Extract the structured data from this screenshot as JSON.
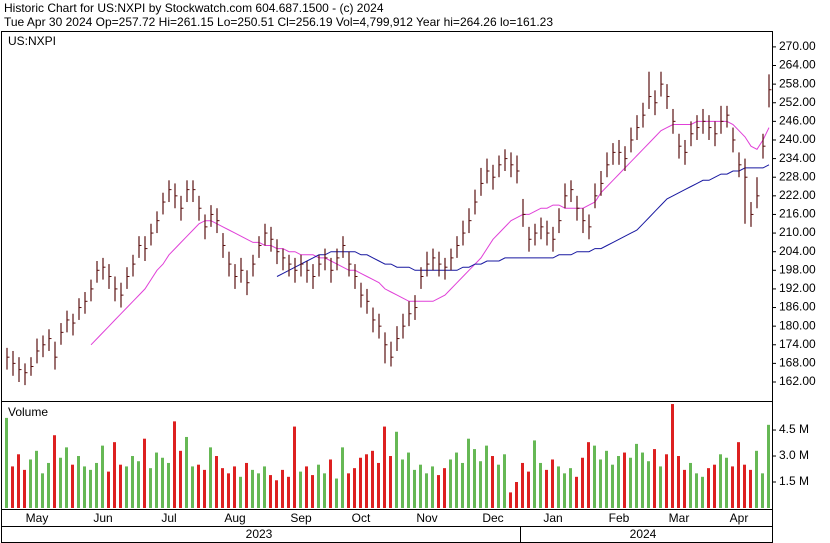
{
  "chart_data": {
    "type": "ohlc",
    "title": "Historic Chart for US:NXPI by Stockwatch.com 604.687.1500 - (c) 2024",
    "subtitle": "Tue Apr 30 2024  Op=257.72  Hi=261.15  Lo=250.51  Cl=256.19  Vol=4,799,912  Year hi=264.26  lo=161.23",
    "symbol": "US:NXPI",
    "bar_color": "#5a1010",
    "categories": [
      null,
      null,
      null,
      null,
      null,
      "May",
      null,
      null,
      null,
      null,
      null,
      null,
      null,
      null,
      null,
      null,
      "Jun",
      null,
      null,
      null,
      null,
      null,
      null,
      null,
      null,
      null,
      null,
      "Jul",
      null,
      null,
      null,
      null,
      null,
      null,
      null,
      null,
      null,
      null,
      "Aug",
      null,
      null,
      null,
      null,
      null,
      null,
      null,
      null,
      null,
      null,
      "Sep",
      null,
      null,
      null,
      null,
      null,
      null,
      null,
      null,
      null,
      "Oct",
      null,
      null,
      null,
      null,
      null,
      null,
      null,
      null,
      null,
      null,
      "Nov",
      null,
      null,
      null,
      null,
      null,
      null,
      null,
      null,
      null,
      null,
      "Dec",
      null,
      null,
      null,
      null,
      null,
      null,
      null,
      null,
      null,
      "Jan",
      null,
      null,
      null,
      null,
      null,
      null,
      null,
      null,
      null,
      null,
      "Feb",
      null,
      null,
      null,
      null,
      null,
      null,
      null,
      null,
      null,
      "Mar",
      null,
      null,
      null,
      null,
      null,
      null,
      null,
      null,
      null,
      "Apr",
      null,
      null,
      null,
      null,
      null
    ],
    "year_categories": [
      null,
      null,
      null,
      null,
      null,
      null,
      null,
      null,
      null,
      null,
      null,
      null,
      null,
      null,
      null,
      null,
      null,
      null,
      null,
      null,
      null,
      null,
      null,
      null,
      null,
      null,
      null,
      null,
      null,
      null,
      null,
      null,
      null,
      null,
      null,
      null,
      null,
      null,
      null,
      null,
      null,
      null,
      "2023",
      null,
      null,
      null,
      null,
      null,
      null,
      null,
      null,
      null,
      null,
      null,
      null,
      null,
      null,
      null,
      null,
      null,
      null,
      null,
      null,
      null,
      null,
      null,
      null,
      null,
      null,
      null,
      null,
      null,
      null,
      null,
      null,
      null,
      null,
      null,
      null,
      null,
      null,
      null,
      null,
      null,
      null,
      null,
      null,
      null,
      null,
      null,
      null,
      null,
      null,
      null,
      null,
      null,
      null,
      null,
      null,
      null,
      null,
      null,
      null,
      null,
      null,
      null,
      "2024",
      null,
      null,
      null,
      null,
      null,
      null,
      null,
      null,
      null,
      null,
      null,
      null,
      null,
      null,
      null,
      null,
      null,
      null,
      null,
      null,
      null
    ],
    "high": [
      173,
      172,
      170,
      168,
      170,
      176,
      177,
      179,
      175,
      181,
      185,
      184,
      189,
      191,
      195,
      201,
      202,
      200,
      196,
      194,
      199,
      203,
      209,
      209,
      213,
      217,
      223,
      227,
      226,
      222,
      227,
      227,
      222,
      216,
      219,
      218,
      210,
      204,
      200,
      202,
      198,
      203,
      209,
      213,
      212,
      208,
      205,
      203,
      202,
      203,
      201,
      200,
      203,
      205,
      202,
      205,
      209,
      204,
      200,
      194,
      192,
      186,
      184,
      178,
      175,
      180,
      184,
      188,
      190,
      199,
      204,
      205,
      204,
      202,
      205,
      209,
      214,
      218,
      224,
      231,
      234,
      232,
      235,
      237,
      236,
      235,
      221,
      212,
      213,
      215,
      214,
      212,
      218,
      226,
      227,
      222,
      218,
      216,
      226,
      230,
      236,
      239,
      240,
      238,
      244,
      248,
      252,
      262,
      256,
      262,
      258,
      250,
      242,
      240,
      246,
      248,
      250,
      248,
      246,
      251,
      251,
      244,
      236,
      234,
      220,
      228,
      242,
      261.15
    ],
    "low": [
      166,
      164,
      162,
      161,
      164,
      168,
      170,
      172,
      166,
      174,
      178,
      177,
      182,
      184,
      188,
      194,
      195,
      192,
      188,
      186,
      192,
      196,
      202,
      201,
      206,
      210,
      216,
      220,
      218,
      214,
      220,
      220,
      214,
      208,
      212,
      210,
      202,
      196,
      192,
      194,
      190,
      196,
      202,
      206,
      204,
      200,
      198,
      196,
      194,
      196,
      194,
      192,
      196,
      198,
      194,
      198,
      202,
      196,
      192,
      186,
      184,
      178,
      176,
      168,
      167,
      172,
      176,
      180,
      182,
      192,
      196,
      198,
      196,
      195,
      198,
      202,
      206,
      210,
      216,
      222,
      226,
      224,
      228,
      230,
      228,
      226,
      212,
      204,
      206,
      208,
      206,
      204,
      210,
      218,
      220,
      214,
      210,
      208,
      218,
      222,
      228,
      232,
      232,
      230,
      236,
      240,
      244,
      250,
      248,
      254,
      250,
      242,
      234,
      232,
      238,
      240,
      242,
      240,
      238,
      242,
      244,
      236,
      228,
      213,
      212,
      218,
      234,
      250.51
    ],
    "close": [
      170,
      168,
      166,
      165,
      167,
      172,
      174,
      176,
      170,
      178,
      182,
      181,
      186,
      188,
      192,
      198,
      199,
      196,
      192,
      190,
      196,
      200,
      206,
      205,
      210,
      214,
      220,
      224,
      222,
      218,
      224,
      224,
      218,
      212,
      216,
      214,
      206,
      200,
      196,
      198,
      194,
      200,
      206,
      210,
      208,
      204,
      202,
      200,
      198,
      200,
      198,
      196,
      200,
      202,
      198,
      202,
      206,
      200,
      196,
      190,
      188,
      182,
      180,
      174,
      170,
      176,
      180,
      184,
      186,
      196,
      200,
      202,
      200,
      199,
      202,
      206,
      210,
      214,
      220,
      226,
      230,
      228,
      232,
      234,
      232,
      230,
      216,
      208,
      210,
      212,
      210,
      208,
      214,
      222,
      224,
      218,
      214,
      212,
      222,
      226,
      232,
      236,
      236,
      234,
      240,
      244,
      248,
      254,
      252,
      258,
      254,
      246,
      238,
      236,
      242,
      244,
      246,
      244,
      242,
      246,
      248,
      240,
      232,
      228,
      216,
      222,
      238,
      256.19
    ],
    "moving_averages": [
      {
        "color": "#e040d8",
        "values": [
          null,
          null,
          null,
          null,
          null,
          null,
          null,
          null,
          null,
          null,
          null,
          null,
          null,
          null,
          174,
          176,
          178,
          180,
          182,
          184,
          186,
          188,
          190,
          192,
          195,
          198,
          200,
          203,
          205,
          207,
          209,
          211,
          213,
          214,
          214,
          213,
          212,
          211,
          210,
          209,
          208,
          207,
          207,
          206,
          206,
          205,
          205,
          204,
          204,
          203,
          203,
          203,
          202,
          202,
          201,
          200,
          199,
          198,
          198,
          197,
          196,
          195,
          194,
          192,
          191,
          190,
          189,
          188,
          188,
          188,
          188,
          188,
          189,
          190,
          192,
          194,
          196,
          198,
          200,
          202,
          205,
          208,
          210,
          212,
          214,
          215,
          216,
          216,
          217,
          218,
          218,
          219,
          219,
          218,
          218,
          218,
          218,
          219,
          220,
          223,
          225,
          227,
          229,
          231,
          233,
          235,
          237,
          239,
          241,
          243,
          244,
          245,
          245,
          245,
          245,
          246,
          246,
          246,
          246,
          246,
          246,
          245,
          243,
          241,
          238,
          237,
          240,
          244
        ]
      },
      {
        "color": "#1818a0",
        "values": [
          null,
          null,
          null,
          null,
          null,
          null,
          null,
          null,
          null,
          null,
          null,
          null,
          null,
          null,
          null,
          null,
          null,
          null,
          null,
          null,
          null,
          null,
          null,
          null,
          null,
          null,
          null,
          null,
          null,
          null,
          null,
          null,
          null,
          null,
          null,
          null,
          null,
          null,
          null,
          null,
          null,
          null,
          null,
          null,
          null,
          196,
          197,
          198,
          199,
          200,
          201,
          202,
          203,
          203,
          204,
          204,
          204,
          204,
          204,
          203,
          203,
          202,
          201,
          200,
          200,
          199,
          199,
          199,
          198,
          198,
          198,
          198,
          198,
          198,
          198,
          198,
          199,
          199,
          200,
          200,
          201,
          201,
          201,
          202,
          202,
          202,
          202,
          202,
          202,
          202,
          202,
          202,
          203,
          203,
          203,
          204,
          204,
          204,
          205,
          205,
          206,
          207,
          208,
          209,
          210,
          211,
          213,
          215,
          217,
          219,
          221,
          222,
          223,
          224,
          225,
          226,
          227,
          227,
          228,
          229,
          229,
          230,
          230,
          231,
          231,
          231,
          231,
          232
        ]
      }
    ],
    "ylim": [
      156.2,
      274.8
    ],
    "yticks": [
      {
        "value": 162,
        "label": "162.00"
      },
      {
        "value": 168,
        "label": "168.00"
      },
      {
        "value": 174,
        "label": "174.00"
      },
      {
        "value": 180,
        "label": "180.00"
      },
      {
        "value": 186,
        "label": "186.00"
      },
      {
        "value": 192,
        "label": "192.00"
      },
      {
        "value": 198,
        "label": "198.00"
      },
      {
        "value": 204,
        "label": "204.00"
      },
      {
        "value": 210,
        "label": "210.00"
      },
      {
        "value": 216,
        "label": "216.00"
      },
      {
        "value": 222,
        "label": "222.00"
      },
      {
        "value": 228,
        "label": "228.00"
      },
      {
        "value": 234,
        "label": "234.00"
      },
      {
        "value": 240,
        "label": "240.00"
      },
      {
        "value": 246,
        "label": "246.00"
      },
      {
        "value": 252,
        "label": "252.00"
      },
      {
        "value": 258,
        "label": "258.00"
      },
      {
        "value": 264,
        "label": "264.00"
      },
      {
        "value": 270,
        "label": "270.00"
      }
    ],
    "volume": {
      "title": "Volume",
      "up_color": "#66b855",
      "down_color": "#dd2020",
      "values": [
        5.2,
        2.4,
        3.1,
        2.2,
        2.8,
        3.3,
        2.0,
        2.6,
        4.2,
        2.9,
        3.5,
        2.5,
        3.0,
        2.4,
        2.2,
        2.6,
        3.6,
        2.1,
        3.8,
        2.5,
        2.4,
        3.0,
        2.7,
        4.0,
        2.3,
        3.2,
        2.9,
        2.6,
        5.0,
        3.3,
        4.1,
        2.4,
        2.5,
        2.2,
        3.5,
        3.0,
        2.3,
        2.0,
        2.4,
        1.8,
        2.6,
        2.2,
        2.0,
        2.4,
        1.9,
        1.6,
        2.2,
        1.8,
        4.7,
        2.1,
        2.4,
        1.9,
        2.5,
        2.0,
        2.8,
        1.7,
        3.5,
        2.0,
        2.3,
        2.9,
        3.1,
        3.3,
        2.6,
        4.7,
        3.0,
        4.4,
        2.8,
        3.2,
        2.2,
        2.5,
        2.0,
        2.4,
        1.9,
        2.3,
        2.8,
        3.2,
        2.6,
        4.0,
        3.4,
        2.7,
        3.6,
        3.0,
        2.5,
        3.1,
        0.9,
        1.5,
        2.6,
        2.1,
        3.9,
        2.6,
        2.2,
        2.8,
        2.4,
        2.0,
        2.3,
        1.8,
        2.9,
        3.8,
        3.6,
        2.8,
        3.3,
        2.5,
        3.0,
        3.2,
        2.9,
        3.7,
        3.2,
        2.7,
        3.4,
        2.4,
        3.1,
        6.0,
        3.0,
        2.2,
        2.6,
        2.0,
        1.8,
        2.3,
        2.5,
        3.1,
        2.9,
        2.4,
        3.8,
        2.5,
        2.2,
        3.3,
        2.0,
        4.8
      ],
      "ylim": [
        0,
        6.06
      ],
      "yticks": [
        {
          "value": 1.5,
          "label": "1.5 M"
        },
        {
          "value": 3.0,
          "label": "3.0 M"
        },
        {
          "value": 4.5,
          "label": "4.5 M"
        }
      ]
    }
  }
}
